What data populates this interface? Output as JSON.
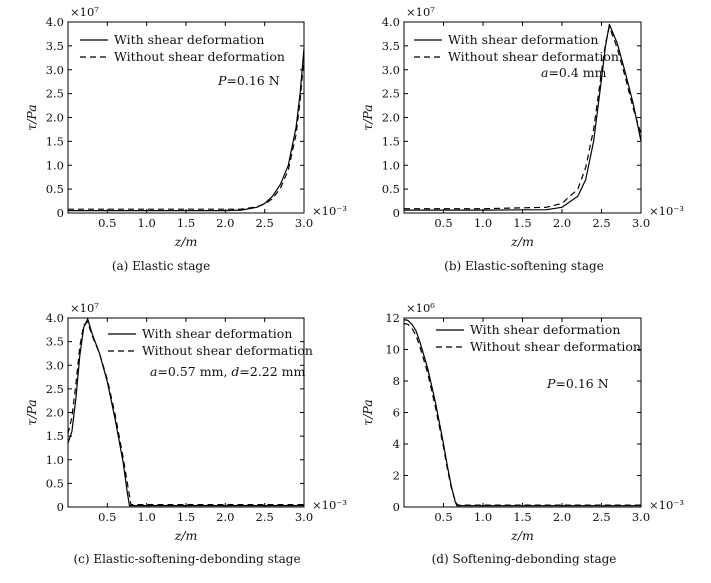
{
  "chart_data": [
    {
      "type": "line",
      "caption": "(a) Elastic stage",
      "xlabel": "z/m",
      "ylabel": "τ/Pa",
      "x_multiplier": "×10⁻³",
      "y_multiplier": "×10⁷",
      "xlim": [
        0,
        3.0
      ],
      "ylim": [
        0,
        4.0
      ],
      "xticks": [
        "0.5",
        "1.0",
        "1.5",
        "2.0",
        "2.5",
        "3.0"
      ],
      "yticks": [
        "0",
        "0.5",
        "1.0",
        "1.5",
        "2.0",
        "2.5",
        "3.0",
        "3.5",
        "4.0"
      ],
      "annotation": "P=0.16 N",
      "legend": [
        "With shear deformation",
        "Without shear deformation"
      ],
      "legend_position": "top-left",
      "series": [
        {
          "name": "With shear deformation",
          "style": "solid",
          "x": [
            0,
            1.0,
            2.0,
            2.2,
            2.4,
            2.5,
            2.6,
            2.7,
            2.8,
            2.9,
            2.95,
            3.0
          ],
          "y": [
            0.05,
            0.05,
            0.05,
            0.06,
            0.12,
            0.2,
            0.35,
            0.6,
            1.0,
            1.8,
            2.5,
            3.45
          ]
        },
        {
          "name": "Without shear deformation",
          "style": "dashed",
          "x": [
            0,
            1.0,
            2.0,
            2.2,
            2.4,
            2.5,
            2.6,
            2.7,
            2.8,
            2.9,
            2.95,
            3.0
          ],
          "y": [
            0.08,
            0.08,
            0.08,
            0.08,
            0.13,
            0.19,
            0.3,
            0.52,
            0.9,
            1.65,
            2.35,
            3.3
          ]
        }
      ]
    },
    {
      "type": "line",
      "caption": "(b) Elastic-softening stage",
      "xlabel": "z/m",
      "ylabel": "τ/Pa",
      "x_multiplier": "×10⁻³",
      "y_multiplier": "×10⁷",
      "xlim": [
        0,
        3.0
      ],
      "ylim": [
        0,
        4.0
      ],
      "xticks": [
        "0.5",
        "1.0",
        "1.5",
        "2.0",
        "2.5",
        "3.0"
      ],
      "yticks": [
        "0",
        "0.5",
        "1.0",
        "1.5",
        "2.0",
        "2.5",
        "3.0",
        "3.5",
        "4.0"
      ],
      "annotation": "a=0.4 mm",
      "legend": [
        "With shear deformation",
        "Without shear deformation"
      ],
      "legend_position": "top-left",
      "series": [
        {
          "name": "With shear deformation",
          "style": "solid",
          "x": [
            0,
            1.0,
            1.8,
            2.0,
            2.2,
            2.3,
            2.4,
            2.5,
            2.55,
            2.6,
            2.7,
            2.8,
            2.9,
            3.0
          ],
          "y": [
            0.06,
            0.06,
            0.07,
            0.12,
            0.35,
            0.7,
            1.5,
            2.8,
            3.5,
            3.95,
            3.55,
            2.95,
            2.3,
            1.5
          ]
        },
        {
          "name": "Without shear deformation",
          "style": "dashed",
          "x": [
            0,
            1.0,
            1.8,
            2.0,
            2.2,
            2.3,
            2.4,
            2.5,
            2.55,
            2.6,
            2.7,
            2.8,
            2.9,
            3.0
          ],
          "y": [
            0.09,
            0.09,
            0.12,
            0.2,
            0.5,
            0.95,
            1.75,
            2.95,
            3.55,
            3.9,
            3.45,
            2.85,
            2.2,
            1.65
          ]
        }
      ]
    },
    {
      "type": "line",
      "caption": "(c) Elastic-softening-debonding stage",
      "xlabel": "z/m",
      "ylabel": "τ/Pa",
      "x_multiplier": "×10⁻³",
      "y_multiplier": "×10⁷",
      "xlim": [
        0,
        3.0
      ],
      "ylim": [
        0,
        4.0
      ],
      "xticks": [
        "0.5",
        "1.0",
        "1.5",
        "2.0",
        "2.5",
        "3.0"
      ],
      "yticks": [
        "0",
        "0.5",
        "1.0",
        "1.5",
        "2.0",
        "2.5",
        "3.0",
        "3.5",
        "4.0"
      ],
      "annotation": "a=0.57 mm, d=2.22 mm",
      "legend": [
        "With shear deformation",
        "Without shear deformation"
      ],
      "legend_position": "top-right",
      "series": [
        {
          "name": "With shear deformation",
          "style": "solid",
          "x": [
            0,
            0.05,
            0.1,
            0.15,
            0.2,
            0.25,
            0.3,
            0.4,
            0.5,
            0.6,
            0.7,
            0.75,
            0.78,
            1.0,
            2.0,
            3.0
          ],
          "y": [
            1.35,
            1.6,
            2.3,
            3.2,
            3.8,
            3.98,
            3.7,
            3.25,
            2.65,
            1.85,
            0.95,
            0.35,
            0.03,
            0.03,
            0.03,
            0.03
          ]
        },
        {
          "name": "Without shear deformation",
          "style": "dashed",
          "x": [
            0,
            0.05,
            0.1,
            0.15,
            0.2,
            0.25,
            0.3,
            0.4,
            0.5,
            0.6,
            0.7,
            0.76,
            0.8,
            1.0,
            2.0,
            3.0
          ],
          "y": [
            1.55,
            1.9,
            2.6,
            3.4,
            3.85,
            3.92,
            3.65,
            3.25,
            2.7,
            1.95,
            1.05,
            0.45,
            0.05,
            0.05,
            0.05,
            0.05
          ]
        }
      ]
    },
    {
      "type": "line",
      "caption": "(d) Softening-debonding stage",
      "xlabel": "z/m",
      "ylabel": "τ/Pa",
      "x_multiplier": "×10⁻³",
      "y_multiplier": "×10⁶",
      "xlim": [
        0,
        3.0
      ],
      "ylim": [
        0,
        12
      ],
      "xticks": [
        "0.5",
        "1.0",
        "1.5",
        "2.0",
        "2.5",
        "3.0"
      ],
      "yticks": [
        "0",
        "2",
        "4",
        "6",
        "8",
        "10",
        "12"
      ],
      "annotation": "P=0.16 N",
      "legend": [
        "With shear deformation",
        "Without shear deformation"
      ],
      "legend_position": "top-right",
      "series": [
        {
          "name": "With shear deformation",
          "style": "solid",
          "x": [
            0,
            0.05,
            0.1,
            0.15,
            0.2,
            0.3,
            0.4,
            0.5,
            0.55,
            0.6,
            0.65,
            0.67,
            1.0,
            2.0,
            3.0
          ],
          "y": [
            11.9,
            11.85,
            11.6,
            11.2,
            10.5,
            8.8,
            6.6,
            4.0,
            2.6,
            1.3,
            0.3,
            0.08,
            0.08,
            0.08,
            0.08
          ]
        },
        {
          "name": "Without shear deformation",
          "style": "dashed",
          "x": [
            0,
            0.05,
            0.1,
            0.15,
            0.2,
            0.3,
            0.4,
            0.5,
            0.55,
            0.6,
            0.65,
            0.68,
            1.0,
            2.0,
            3.0
          ],
          "y": [
            11.65,
            11.6,
            11.35,
            10.9,
            10.2,
            8.5,
            6.3,
            3.8,
            2.4,
            1.2,
            0.35,
            0.12,
            0.12,
            0.12,
            0.12
          ]
        }
      ]
    }
  ]
}
